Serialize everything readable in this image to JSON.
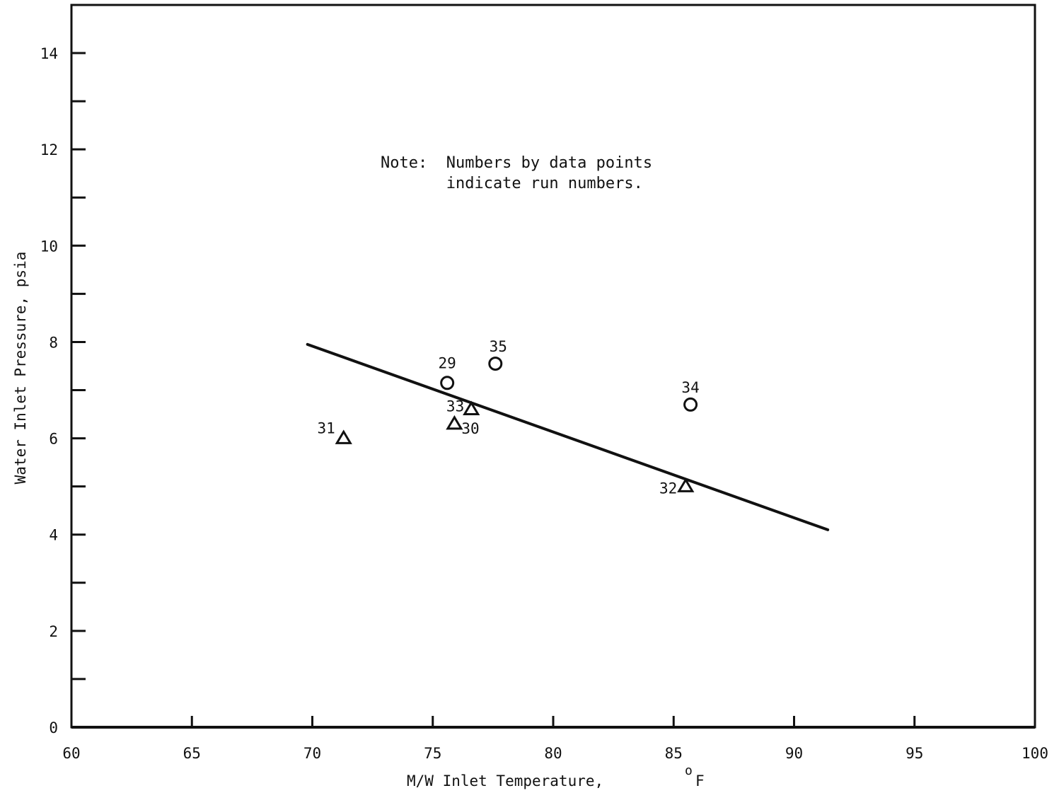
{
  "chart_data": {
    "type": "scatter",
    "title": "",
    "xlabel": "M/W Inlet Temperature,",
    "xlabel_unit_sup": "o",
    "xlabel_unit": "F",
    "ylabel": "Water Inlet Pressure, psia",
    "xlim": [
      60,
      100
    ],
    "ylim": [
      0,
      15
    ],
    "x_ticks": [
      60,
      65,
      70,
      75,
      80,
      85,
      90,
      95,
      100
    ],
    "x_tick_labels": [
      "60",
      "65",
      "70",
      "75",
      "80",
      "85",
      "90",
      "95",
      "100"
    ],
    "y_ticks": [
      0,
      1,
      2,
      3,
      4,
      5,
      6,
      7,
      8,
      9,
      10,
      11,
      12,
      13,
      14
    ],
    "y_tick_labels": [
      "0",
      "",
      "2",
      "",
      "4",
      "",
      "6",
      "",
      "8",
      "",
      "10",
      "",
      "12",
      "",
      "14"
    ],
    "grid": false,
    "series": [
      {
        "marker": "circle",
        "points": [
          {
            "x": 75.6,
            "y": 7.15,
            "label": "29"
          },
          {
            "x": 77.6,
            "y": 7.55,
            "label": "35"
          },
          {
            "x": 85.7,
            "y": 6.7,
            "label": "34"
          }
        ]
      },
      {
        "marker": "triangle",
        "points": [
          {
            "x": 71.3,
            "y": 6.0,
            "label": "31"
          },
          {
            "x": 75.9,
            "y": 6.3,
            "label": "30"
          },
          {
            "x": 76.6,
            "y": 6.6,
            "label": "33"
          },
          {
            "x": 85.5,
            "y": 5.0,
            "label": "32"
          }
        ]
      }
    ],
    "fit_line": {
      "x": [
        69.8,
        91.4
      ],
      "y": [
        7.95,
        4.1
      ]
    },
    "annotation": {
      "lines": [
        "Note:  Numbers by data points",
        "       indicate run numbers."
      ]
    }
  }
}
